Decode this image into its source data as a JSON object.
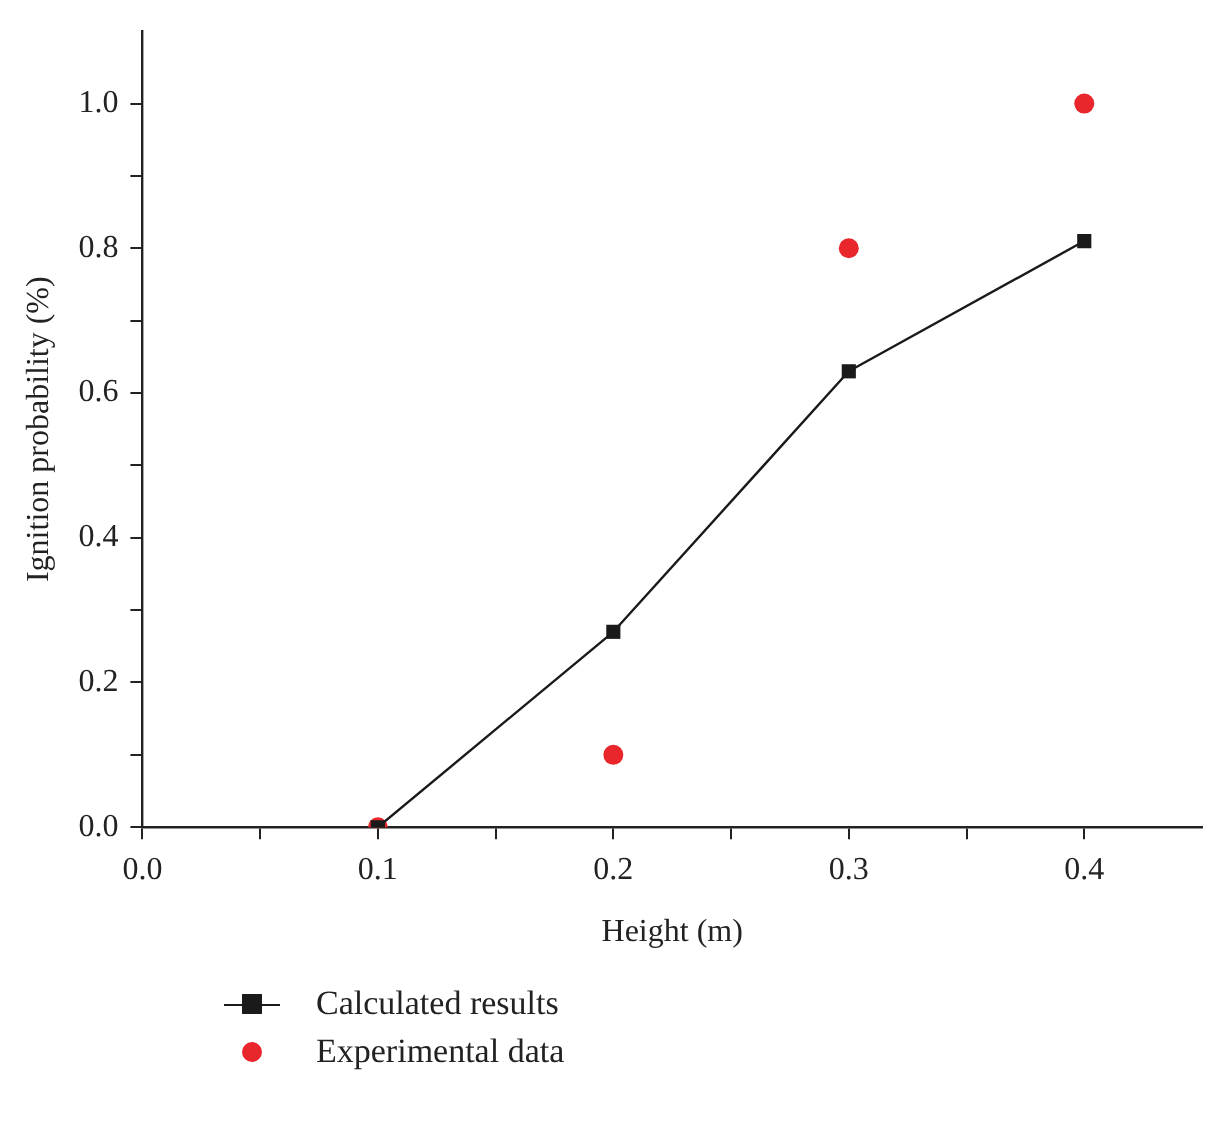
{
  "chart_data": {
    "type": "line",
    "xlabel": "Height (m)",
    "ylabel": "Ignition probability (%)",
    "x": [
      0.1,
      0.2,
      0.3,
      0.4
    ],
    "series": [
      {
        "name": "Calculated results",
        "color": "#1a1a1a",
        "values": [
          0,
          0.27,
          0.63,
          0.81
        ],
        "marker": "square"
      },
      {
        "name": "Experimental data",
        "type": "scatter",
        "color": "#e8262b",
        "values": [
          0,
          0.1,
          0.8,
          1.0
        ],
        "marker": "circle"
      }
    ],
    "xlim": [
      0,
      0.45
    ],
    "ylim": [
      0,
      1.1
    ],
    "xticks": [
      {
        "value": 0,
        "label": "0.0"
      },
      {
        "value": 0.05,
        "label": null
      },
      {
        "value": 0.1,
        "label": "0.1"
      },
      {
        "value": 0.15,
        "label": null
      },
      {
        "value": 0.2,
        "label": "0.2"
      },
      {
        "value": 0.25,
        "label": null
      },
      {
        "value": 0.3,
        "label": "0.3"
      },
      {
        "value": 0.35,
        "label": null
      },
      {
        "value": 0.4,
        "label": "0.4"
      }
    ],
    "yticks": [
      {
        "value": 0,
        "label": "0.0"
      },
      {
        "value": 0.1,
        "label": null
      },
      {
        "value": 0.2,
        "label": "0.2"
      },
      {
        "value": 0.3,
        "label": null
      },
      {
        "value": 0.4,
        "label": "0.4"
      },
      {
        "value": 0.5,
        "label": null
      },
      {
        "value": 0.6,
        "label": "0.6"
      },
      {
        "value": 0.7,
        "label": null
      },
      {
        "value": 0.8,
        "label": "0.8"
      },
      {
        "value": 0.9,
        "label": null
      },
      {
        "value": 1.0,
        "label": "1.0"
      }
    ],
    "grid": false,
    "legend": "bottom"
  }
}
